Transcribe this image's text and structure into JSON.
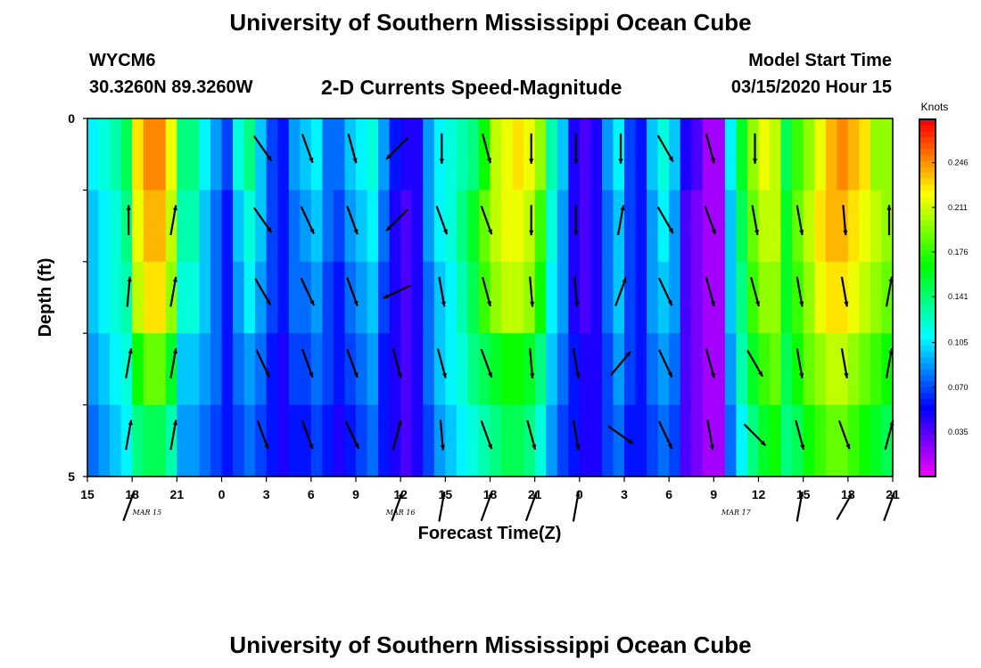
{
  "header": {
    "title": "University of Southern Mississippi Ocean Cube",
    "station": "WYCM6",
    "location": "30.3260N 89.3260W",
    "subtitle": "2-D Currents Speed-Magnitude",
    "model_start_label": "Model Start Time",
    "model_start_value": "03/15/2020 Hour 15"
  },
  "footer": {
    "title": "University of Southern Mississippi Ocean Cube"
  },
  "chart_data": {
    "type": "heatmap",
    "title": "2-D Currents Speed-Magnitude",
    "xlabel": "Forecast Time(Z)",
    "ylabel": "Depth (ft)",
    "x_hours_from_start": [
      0,
      54
    ],
    "x_tick_labels": [
      "15",
      "18",
      "21",
      "0",
      "3",
      "6",
      "9",
      "12",
      "15",
      "18",
      "21",
      "0",
      "3",
      "6",
      "9",
      "12",
      "15",
      "18",
      "21"
    ],
    "date_labels": [
      {
        "label": "MAR 15",
        "at_hour": 4
      },
      {
        "label": "MAR 16",
        "at_hour": 21
      },
      {
        "label": "MAR 17",
        "at_hour": 43.5
      }
    ],
    "ylim": [
      0,
      5
    ],
    "y_tick_labels": [
      "0",
      "5"
    ],
    "depth_rows": 5,
    "colorbar": {
      "label": "Knots",
      "range": [
        0,
        0.28
      ],
      "ticks": [
        "0.246",
        "0.211",
        "0.176",
        "0.141",
        "0.105",
        "0.070",
        "0.035"
      ]
    },
    "speed_knots": [
      [
        0.11,
        0.12,
        0.13,
        0.15,
        0.23,
        0.25,
        0.25,
        0.22,
        0.14,
        0.14,
        0.11,
        0.09,
        0.07,
        0.12,
        0.14,
        0.1,
        0.07,
        0.06,
        0.09,
        0.1,
        0.11,
        0.08,
        0.08,
        0.1,
        0.11,
        0.12,
        0.09,
        0.06,
        0.05,
        0.05,
        0.09,
        0.11,
        0.12,
        0.13,
        0.14,
        0.17,
        0.21,
        0.22,
        0.23,
        0.22,
        0.2,
        0.13,
        0.1,
        0.05,
        0.04,
        0.05,
        0.09,
        0.11,
        0.07,
        0.06,
        0.1,
        0.12,
        0.1,
        0.05,
        0.04,
        0.02,
        0.02,
        0.11,
        0.16,
        0.2,
        0.22,
        0.21,
        0.15,
        0.18,
        0.2,
        0.22,
        0.24,
        0.25,
        0.24,
        0.23,
        0.2,
        0.2
      ],
      [
        0.1,
        0.11,
        0.12,
        0.14,
        0.22,
        0.24,
        0.24,
        0.21,
        0.13,
        0.13,
        0.1,
        0.08,
        0.06,
        0.1,
        0.12,
        0.1,
        0.07,
        0.06,
        0.08,
        0.09,
        0.1,
        0.08,
        0.07,
        0.09,
        0.1,
        0.11,
        0.08,
        0.05,
        0.04,
        0.05,
        0.09,
        0.11,
        0.12,
        0.14,
        0.16,
        0.19,
        0.21,
        0.22,
        0.22,
        0.21,
        0.18,
        0.12,
        0.09,
        0.05,
        0.04,
        0.05,
        0.08,
        0.1,
        0.07,
        0.06,
        0.09,
        0.11,
        0.09,
        0.04,
        0.03,
        0.02,
        0.02,
        0.1,
        0.15,
        0.19,
        0.21,
        0.21,
        0.16,
        0.19,
        0.21,
        0.23,
        0.24,
        0.24,
        0.23,
        0.22,
        0.21,
        0.2
      ],
      [
        0.1,
        0.11,
        0.12,
        0.13,
        0.21,
        0.23,
        0.23,
        0.2,
        0.12,
        0.12,
        0.1,
        0.08,
        0.06,
        0.09,
        0.11,
        0.09,
        0.07,
        0.06,
        0.08,
        0.08,
        0.09,
        0.07,
        0.06,
        0.08,
        0.09,
        0.1,
        0.07,
        0.05,
        0.04,
        0.05,
        0.08,
        0.1,
        0.11,
        0.13,
        0.15,
        0.18,
        0.2,
        0.21,
        0.21,
        0.2,
        0.17,
        0.11,
        0.09,
        0.05,
        0.04,
        0.05,
        0.08,
        0.1,
        0.07,
        0.06,
        0.09,
        0.1,
        0.09,
        0.04,
        0.03,
        0.02,
        0.02,
        0.1,
        0.14,
        0.18,
        0.2,
        0.2,
        0.16,
        0.18,
        0.2,
        0.22,
        0.23,
        0.23,
        0.22,
        0.21,
        0.2,
        0.19
      ],
      [
        0.09,
        0.1,
        0.11,
        0.12,
        0.17,
        0.19,
        0.19,
        0.16,
        0.1,
        0.1,
        0.09,
        0.08,
        0.06,
        0.08,
        0.09,
        0.08,
        0.06,
        0.05,
        0.07,
        0.07,
        0.08,
        0.07,
        0.06,
        0.07,
        0.08,
        0.09,
        0.06,
        0.05,
        0.04,
        0.05,
        0.08,
        0.1,
        0.11,
        0.12,
        0.14,
        0.15,
        0.16,
        0.17,
        0.17,
        0.16,
        0.14,
        0.1,
        0.08,
        0.06,
        0.05,
        0.05,
        0.07,
        0.09,
        0.07,
        0.06,
        0.08,
        0.09,
        0.08,
        0.04,
        0.03,
        0.02,
        0.02,
        0.09,
        0.13,
        0.16,
        0.18,
        0.19,
        0.15,
        0.17,
        0.19,
        0.2,
        0.21,
        0.21,
        0.2,
        0.19,
        0.18,
        0.17
      ],
      [
        0.08,
        0.09,
        0.1,
        0.11,
        0.14,
        0.15,
        0.15,
        0.13,
        0.09,
        0.09,
        0.08,
        0.07,
        0.06,
        0.07,
        0.08,
        0.07,
        0.06,
        0.05,
        0.06,
        0.06,
        0.07,
        0.06,
        0.05,
        0.06,
        0.07,
        0.08,
        0.06,
        0.05,
        0.04,
        0.05,
        0.07,
        0.09,
        0.1,
        0.11,
        0.12,
        0.13,
        0.14,
        0.15,
        0.15,
        0.14,
        0.12,
        0.09,
        0.07,
        0.06,
        0.05,
        0.05,
        0.07,
        0.08,
        0.06,
        0.06,
        0.07,
        0.08,
        0.07,
        0.04,
        0.03,
        0.02,
        0.02,
        0.08,
        0.11,
        0.14,
        0.16,
        0.17,
        0.14,
        0.15,
        0.17,
        0.18,
        0.19,
        0.19,
        0.18,
        0.17,
        0.16,
        0.15
      ]
    ],
    "arrows": {
      "hours": [
        3,
        6,
        9,
        12,
        15,
        18,
        21,
        24,
        27,
        30,
        33,
        36,
        39,
        42,
        45,
        48,
        51,
        54
      ],
      "direction_deg_clockwise_from_north": [
        [
          null,
          null,
          null,
          145,
          160,
          165,
          225,
          180,
          165,
          180,
          180,
          180,
          150,
          165,
          180,
          null,
          null,
          null
        ],
        [
          0,
          10,
          null,
          145,
          155,
          160,
          225,
          160,
          160,
          180,
          180,
          10,
          150,
          160,
          170,
          170,
          175,
          0
        ],
        [
          5,
          10,
          null,
          150,
          155,
          160,
          245,
          170,
          165,
          175,
          175,
          20,
          155,
          165,
          165,
          170,
          170,
          10
        ],
        [
          10,
          10,
          null,
          155,
          160,
          160,
          165,
          165,
          160,
          175,
          170,
          40,
          155,
          165,
          150,
          170,
          170,
          10
        ],
        [
          10,
          10,
          null,
          160,
          160,
          155,
          15,
          175,
          160,
          165,
          170,
          125,
          155,
          170,
          135,
          165,
          160,
          15
        ],
        [
          20,
          null,
          null,
          null,
          null,
          null,
          20,
          10,
          20,
          20,
          10,
          null,
          null,
          null,
          null,
          10,
          30,
          20
        ]
      ]
    }
  }
}
